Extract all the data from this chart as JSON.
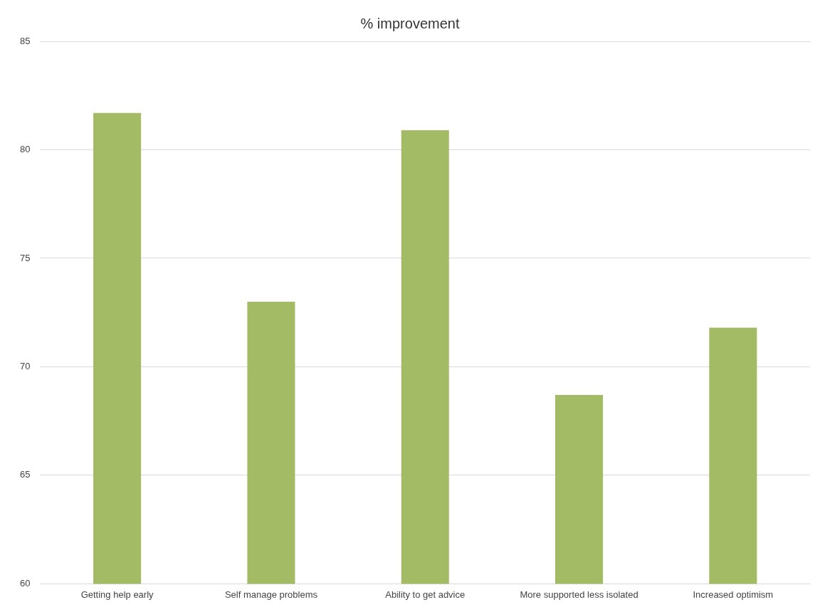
{
  "chart_data": {
    "type": "bar",
    "title": "% improvement",
    "categories": [
      "Getting help early",
      "Self manage problems",
      "Ability to get advice",
      "More supported less isolated",
      "Increased optimism"
    ],
    "values": [
      81.7,
      73.0,
      80.9,
      68.7,
      71.8
    ],
    "color": "#a2bb64",
    "ylim": [
      60,
      85
    ],
    "yticks": [
      60,
      65,
      70,
      75,
      80,
      85
    ],
    "grid": "y"
  }
}
